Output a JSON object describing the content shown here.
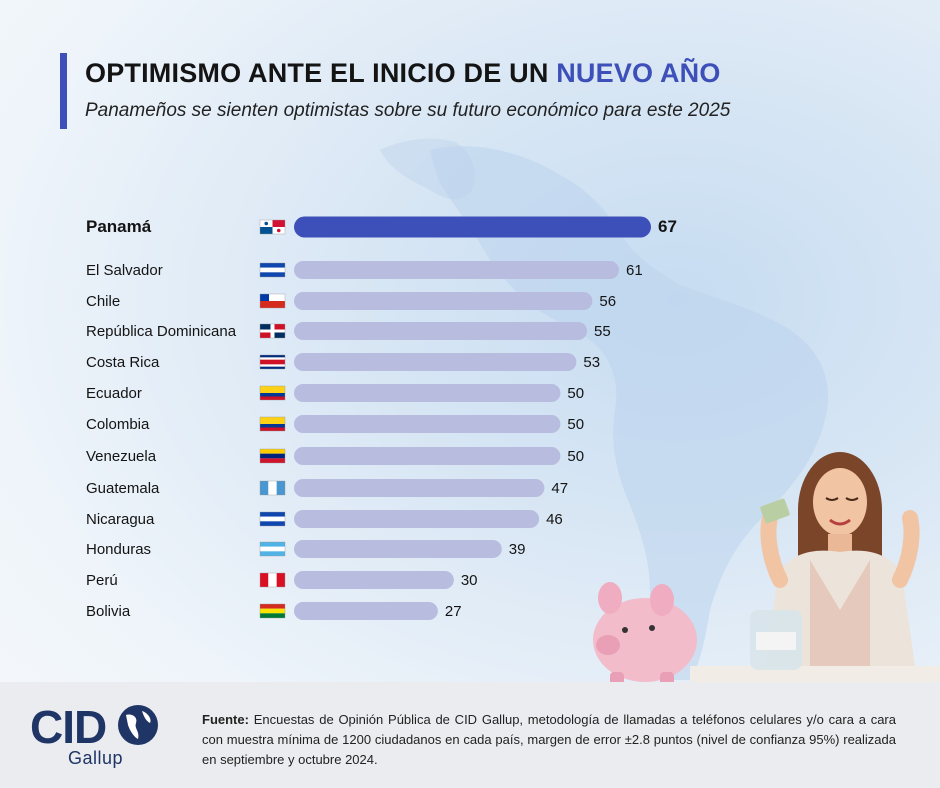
{
  "header": {
    "title_main": "OPTIMISMO ANTE EL INICIO DE UN",
    "title_accent": "NUEVO AÑO",
    "subtitle": "Panameños se sienten optimistas sobre su futuro económico para este 2025"
  },
  "colors": {
    "accent": "#3d4fb8",
    "bar_other": "#b8bde0",
    "logo": "#1f3566"
  },
  "chart_data": {
    "type": "bar",
    "orientation": "horizontal",
    "categories": [
      "Panamá",
      "El Salvador",
      "Chile",
      "República Dominicana",
      "Costa Rica",
      "Ecuador",
      "Colombia",
      "Venezuela",
      "Guatemala",
      "Nicaragua",
      "Honduras",
      "Perú",
      "Bolivia"
    ],
    "values": [
      67,
      61,
      56,
      55,
      53,
      50,
      50,
      50,
      47,
      46,
      39,
      30,
      27
    ],
    "flag_icons": [
      "panama-flag-icon",
      "el-salvador-flag-icon",
      "chile-flag-icon",
      "dominican-republic-flag-icon",
      "costa-rica-flag-icon",
      "ecuador-flag-icon",
      "colombia-flag-icon",
      "venezuela-flag-icon",
      "guatemala-flag-icon",
      "nicaragua-flag-icon",
      "honduras-flag-icon",
      "peru-flag-icon",
      "bolivia-flag-icon"
    ],
    "highlight": "Panamá",
    "xlim": [
      0,
      67
    ],
    "title": "",
    "xlabel": "",
    "ylabel": "",
    "grid": false,
    "legend": "none"
  },
  "logo": {
    "brand": "CID",
    "sub": "Gallup"
  },
  "footer": {
    "source_label": "Fuente:",
    "source_text": "Encuestas de Opinión Pública de CID Gallup, metodología de llamadas a teléfonos celulares y/o cara a cara con muestra mínima de 1200 ciudadanos en cada país, margen de error ±2.8 puntos (nivel de confianza 95%) realizada en septiembre y octubre 2024."
  }
}
